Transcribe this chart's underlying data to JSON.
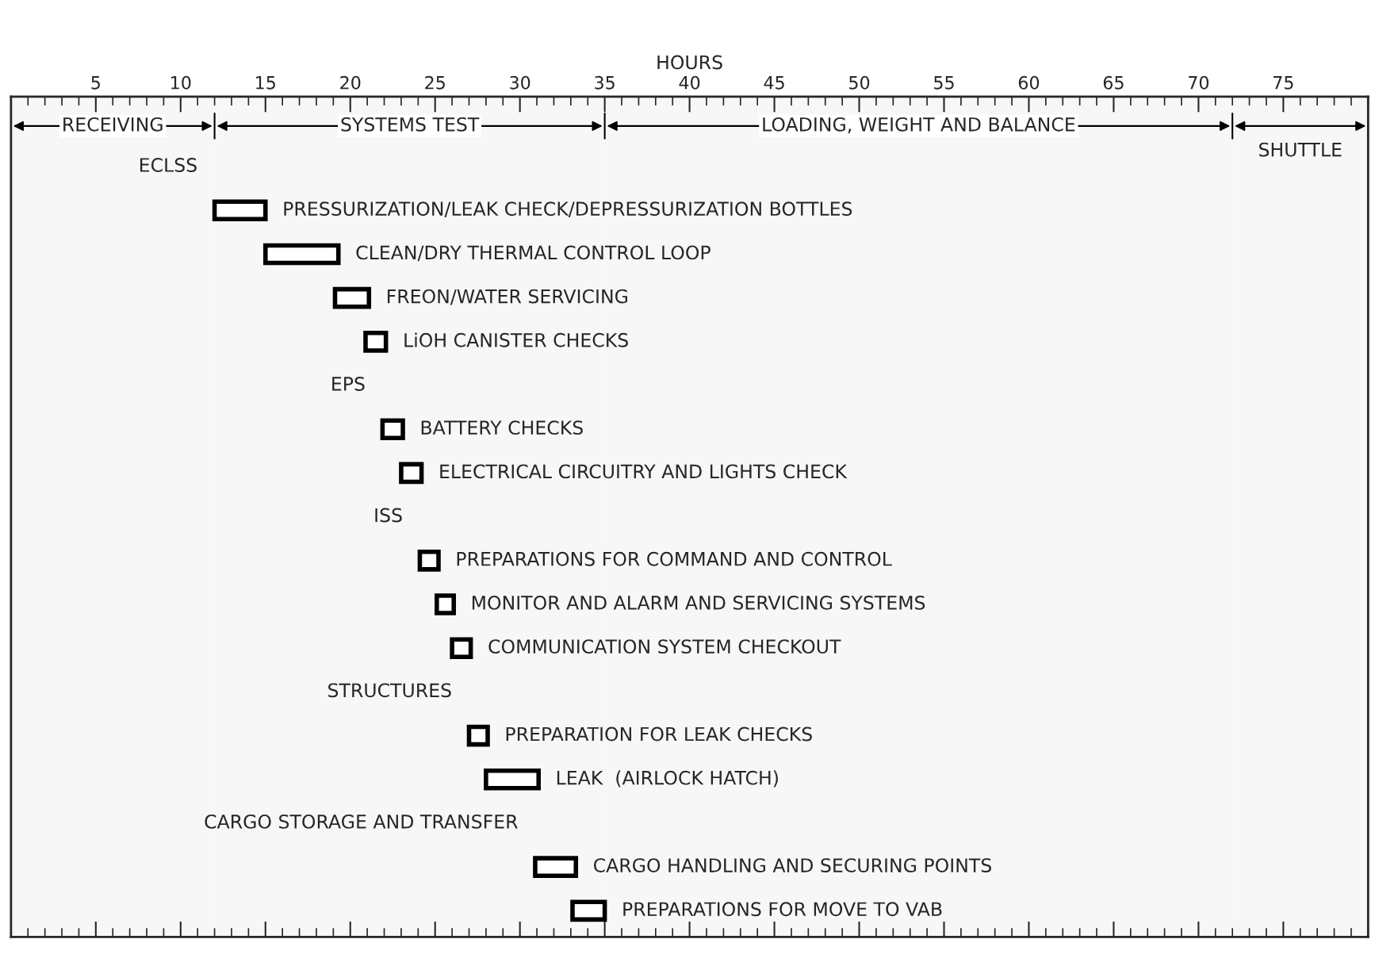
{
  "chart_data": {
    "type": "bar",
    "orientation": "horizontal",
    "xlabel": "HOURS",
    "categories": [
      "ECLSS",
      "PRESSURIZATION/LEAK CHECK/DEPRESSURIZATION BOTTLES",
      "CLEAN/DRY THERMAL CONTROL LOOP",
      "FREON/WATER SERVICING",
      "LiOH CANISTER CHECKS",
      "EPS",
      "BATTERY CHECKS",
      "ELECTRICAL CIRCUITRY AND LIGHTS CHECK",
      "ISS",
      "PREPARATIONS FOR COMMAND AND CONTROL",
      "MONITOR AND ALARM AND SERVICING SYSTEMS",
      "COMMUNICATION SYSTEM CHECKOUT",
      "STRUCTURES",
      "PREPARATION FOR LEAK CHECKS",
      "LEAK  (AIRLOCK HATCH)",
      "CARGO STORAGE AND TRANSFER",
      "CARGO HANDLING AND SECURING POINTS",
      "PREPARATIONS FOR MOVE TO VAB"
    ],
    "base": [
      null,
      12,
      15,
      19.1,
      20.9,
      null,
      21.9,
      23,
      null,
      24.1,
      25.1,
      26,
      null,
      27,
      28,
      null,
      30.9,
      33.1
    ],
    "values": [
      null,
      3,
      4.3,
      2,
      1.2,
      null,
      1.2,
      1.2,
      null,
      1.1,
      1,
      1.1,
      null,
      1.1,
      3.1,
      null,
      2.4,
      1.9
    ],
    "color": "#000000",
    "xlim": [
      0,
      80
    ],
    "xticks": [
      5,
      10,
      15,
      20,
      25,
      30,
      35,
      40,
      45,
      50,
      55,
      60,
      65,
      70,
      75
    ],
    "tick_labels": "x",
    "grid": false,
    "legend": false,
    "bands": [
      {
        "axis": "x",
        "from": 0,
        "to": 12,
        "label": "RECEIVING"
      },
      {
        "axis": "x",
        "from": 12,
        "to": 35,
        "label": "SYSTEMS TEST"
      },
      {
        "axis": "x",
        "from": 35,
        "to": 72,
        "label": "LOADING, WEIGHT AND BALANCE"
      },
      {
        "axis": "x",
        "from": 72,
        "to": 80,
        "label": "SHUTTLE"
      }
    ]
  }
}
